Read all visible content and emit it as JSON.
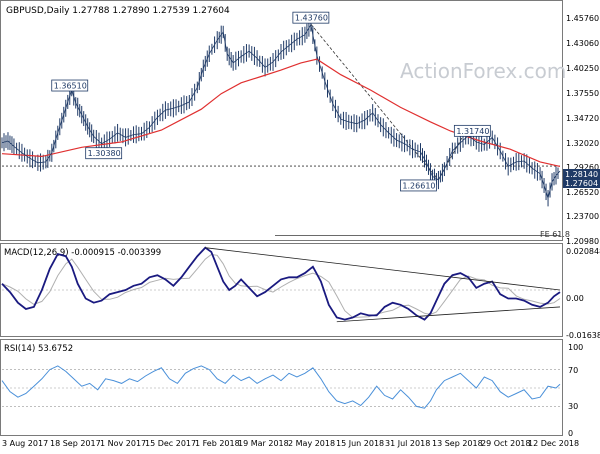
{
  "header": {
    "symbol_line": "GBPUSD,Daily  1.27788 1.27890 1.27539 1.27604",
    "watermark": "ActionForex.com"
  },
  "colors": {
    "price": "#1f3a66",
    "ma": "#e03030",
    "macd_line": "#1a1a80",
    "macd_signal": "#b0b0b0",
    "rsi": "#4a90d9",
    "label_text": "#1f3a66",
    "last_price_box": "#1f3a66"
  },
  "chart_data": [
    {
      "type": "line",
      "panel": "price",
      "title": "GBPUSD,Daily",
      "ohlc_last": {
        "open": 1.27788,
        "high": 1.2789,
        "low": 1.27539,
        "close": 1.27604
      },
      "y_ticks": [
        "1.45760",
        "1.43060",
        "1.40250",
        "1.37550",
        "1.34720",
        "1.32020",
        "1.29260",
        "1.26520",
        "1.23700",
        "1.20980"
      ],
      "ylim": [
        1.2,
        1.462
      ],
      "x_ticks": [
        "3 Aug 2017",
        "18 Sep 2017",
        "1 Nov 2017",
        "15 Dec 2017",
        "1 Feb 2018",
        "19 Mar 2018",
        "2 May 2018",
        "15 Jun 2018",
        "31 Jul 2018",
        "13 Sep 2018",
        "29 Oct 2018",
        "12 Dec 2018"
      ],
      "series": [
        {
          "kind": "price",
          "points": [
            [
              0,
              1.307
            ],
            [
              3,
              1.309
            ],
            [
              6,
              1.303
            ],
            [
              10,
              1.296
            ],
            [
              14,
              1.29
            ],
            [
              18,
              1.285
            ],
            [
              22,
              1.286
            ],
            [
              25,
              1.296
            ],
            [
              28,
              1.318
            ],
            [
              31,
              1.338
            ],
            [
              33,
              1.352
            ],
            [
              35,
              1.365
            ],
            [
              37,
              1.351
            ],
            [
              40,
              1.338
            ],
            [
              43,
              1.325
            ],
            [
              46,
              1.314
            ],
            [
              50,
              1.306
            ],
            [
              54,
              1.311
            ],
            [
              58,
              1.318
            ],
            [
              62,
              1.313
            ],
            [
              66,
              1.316
            ],
            [
              70,
              1.317
            ],
            [
              74,
              1.324
            ],
            [
              78,
              1.335
            ],
            [
              82,
              1.343
            ],
            [
              86,
              1.345
            ],
            [
              90,
              1.348
            ],
            [
              94,
              1.352
            ],
            [
              98,
              1.368
            ],
            [
              101,
              1.389
            ],
            [
              104,
              1.405
            ],
            [
              108,
              1.42
            ],
            [
              111,
              1.429
            ],
            [
              113,
              1.405
            ],
            [
              116,
              1.395
            ],
            [
              120,
              1.402
            ],
            [
              124,
              1.408
            ],
            [
              128,
              1.4
            ],
            [
              132,
              1.39
            ],
            [
              136,
              1.396
            ],
            [
              140,
              1.407
            ],
            [
              144,
              1.414
            ],
            [
              148,
              1.421
            ],
            [
              152,
              1.426
            ],
            [
              155,
              1.437
            ],
            [
              158,
              1.403
            ],
            [
              162,
              1.375
            ],
            [
              166,
              1.35
            ],
            [
              170,
              1.333
            ],
            [
              174,
              1.33
            ],
            [
              178,
              1.328
            ],
            [
              182,
              1.332
            ],
            [
              186,
              1.34
            ],
            [
              190,
              1.327
            ],
            [
              194,
              1.318
            ],
            [
              198,
              1.31
            ],
            [
              202,
              1.306
            ],
            [
              206,
              1.3
            ],
            [
              210,
              1.297
            ],
            [
              213,
              1.285
            ],
            [
              216,
              1.27
            ],
            [
              219,
              1.266
            ],
            [
              222,
              1.278
            ],
            [
              226,
              1.298
            ],
            [
              230,
              1.307
            ],
            [
              234,
              1.315
            ],
            [
              238,
              1.308
            ],
            [
              242,
              1.305
            ],
            [
              246,
              1.313
            ],
            [
              250,
              1.298
            ],
            [
              254,
              1.281
            ],
            [
              258,
              1.286
            ],
            [
              262,
              1.287
            ],
            [
              266,
              1.279
            ],
            [
              270,
              1.273
            ],
            [
              272,
              1.26
            ],
            [
              274,
              1.246
            ],
            [
              276,
              1.264
            ],
            [
              278,
              1.271
            ],
            [
              280,
              1.276
            ]
          ]
        },
        {
          "kind": "ma",
          "points": [
            [
              0,
              1.295
            ],
            [
              20,
              1.292
            ],
            [
              40,
              1.302
            ],
            [
              60,
              1.308
            ],
            [
              80,
              1.321
            ],
            [
              100,
              1.344
            ],
            [
              110,
              1.361
            ],
            [
              120,
              1.373
            ],
            [
              130,
              1.38
            ],
            [
              140,
              1.387
            ],
            [
              150,
              1.395
            ],
            [
              158,
              1.399
            ],
            [
              170,
              1.382
            ],
            [
              185,
              1.365
            ],
            [
              200,
              1.346
            ],
            [
              215,
              1.33
            ],
            [
              225,
              1.32
            ],
            [
              240,
              1.309
            ],
            [
              255,
              1.3
            ],
            [
              270,
              1.286
            ],
            [
              280,
              1.281
            ]
          ]
        }
      ],
      "annotations": [
        {
          "text": "1.43760",
          "x": 157,
          "y": 1.4376
        },
        {
          "text": "1.36510",
          "x": 37,
          "y": 1.3651
        },
        {
          "text": "1.30380",
          "x": 46,
          "y": 1.3038
        },
        {
          "text": "1.31740",
          "x": 230,
          "y": 1.3174
        },
        {
          "text": "1.26610",
          "x": 219,
          "y": 1.2661
        }
      ],
      "axis_labels": {
        "a": "1.28140",
        "b": "1.27604"
      },
      "fe_label": "FE 61.8"
    },
    {
      "type": "line",
      "panel": "macd",
      "title": "MACD(12,26,9) -0.000915 -0.003399",
      "y_ticks": [
        "0.020848",
        "0.00",
        "-0.016389"
      ],
      "ylim": [
        -0.0208,
        0.0208
      ],
      "series": [
        {
          "kind": "macd",
          "points": [
            [
              0,
              0.003
            ],
            [
              4,
              -0.001
            ],
            [
              8,
              -0.006
            ],
            [
              12,
              -0.009
            ],
            [
              16,
              -0.008
            ],
            [
              20,
              0.0
            ],
            [
              24,
              0.01
            ],
            [
              28,
              0.017
            ],
            [
              32,
              0.016
            ],
            [
              35,
              0.011
            ],
            [
              38,
              0.003
            ],
            [
              42,
              -0.004
            ],
            [
              46,
              -0.006
            ],
            [
              50,
              -0.005
            ],
            [
              54,
              -0.002
            ],
            [
              58,
              -0.001
            ],
            [
              62,
              0.0
            ],
            [
              66,
              0.002
            ],
            [
              70,
              0.003
            ],
            [
              74,
              0.006
            ],
            [
              78,
              0.007
            ],
            [
              82,
              0.005
            ],
            [
              86,
              0.002
            ],
            [
              90,
              0.006
            ],
            [
              94,
              0.011
            ],
            [
              98,
              0.016
            ],
            [
              102,
              0.02
            ],
            [
              105,
              0.018
            ],
            [
              108,
              0.011
            ],
            [
              111,
              0.004
            ],
            [
              114,
              0.0
            ],
            [
              117,
              0.002
            ],
            [
              120,
              0.005
            ],
            [
              124,
              0.001
            ],
            [
              128,
              -0.003
            ],
            [
              132,
              -0.001
            ],
            [
              136,
              0.002
            ],
            [
              140,
              0.005
            ],
            [
              144,
              0.006
            ],
            [
              148,
              0.006
            ],
            [
              152,
              0.008
            ],
            [
              156,
              0.011
            ],
            [
              160,
              0.004
            ],
            [
              164,
              -0.007
            ],
            [
              168,
              -0.013
            ],
            [
              172,
              -0.014
            ],
            [
              176,
              -0.013
            ],
            [
              180,
              -0.011
            ],
            [
              184,
              -0.012
            ],
            [
              188,
              -0.012
            ],
            [
              192,
              -0.008
            ],
            [
              196,
              -0.006
            ],
            [
              200,
              -0.007
            ],
            [
              204,
              -0.009
            ],
            [
              208,
              -0.012
            ],
            [
              212,
              -0.014
            ],
            [
              215,
              -0.011
            ],
            [
              218,
              -0.005
            ],
            [
              222,
              0.003
            ],
            [
              226,
              0.007
            ],
            [
              230,
              0.008
            ],
            [
              234,
              0.006
            ],
            [
              238,
              0.001
            ],
            [
              242,
              0.003
            ],
            [
              246,
              0.004
            ],
            [
              250,
              -0.002
            ],
            [
              254,
              -0.004
            ],
            [
              258,
              -0.004
            ],
            [
              262,
              -0.005
            ],
            [
              266,
              -0.007
            ],
            [
              270,
              -0.008
            ],
            [
              274,
              -0.006
            ],
            [
              277,
              -0.003
            ],
            [
              280,
              -0.001
            ]
          ]
        }
      ],
      "trendlines": [
        [
          [
            102,
            0.02
          ],
          [
            280,
            0.0
          ]
        ],
        [
          [
            168,
            -0.015
          ],
          [
            280,
            -0.008
          ]
        ]
      ]
    },
    {
      "type": "line",
      "panel": "rsi",
      "title": "RSI(14) 53.6752",
      "y_ticks": [
        "100",
        "70",
        "50",
        "30",
        "0"
      ],
      "ylim": [
        0,
        100
      ],
      "series": [
        {
          "kind": "rsi",
          "points": [
            [
              0,
              58
            ],
            [
              4,
              46
            ],
            [
              8,
              40
            ],
            [
              12,
              44
            ],
            [
              16,
              52
            ],
            [
              20,
              60
            ],
            [
              24,
              70
            ],
            [
              28,
              74
            ],
            [
              32,
              68
            ],
            [
              36,
              60
            ],
            [
              40,
              52
            ],
            [
              44,
              55
            ],
            [
              48,
              48
            ],
            [
              52,
              60
            ],
            [
              56,
              58
            ],
            [
              60,
              55
            ],
            [
              64,
              60
            ],
            [
              68,
              57
            ],
            [
              72,
              63
            ],
            [
              76,
              68
            ],
            [
              80,
              72
            ],
            [
              84,
              60
            ],
            [
              88,
              55
            ],
            [
              92,
              66
            ],
            [
              96,
              71
            ],
            [
              100,
              74
            ],
            [
              104,
              70
            ],
            [
              108,
              60
            ],
            [
              112,
              55
            ],
            [
              116,
              64
            ],
            [
              120,
              58
            ],
            [
              124,
              62
            ],
            [
              128,
              55
            ],
            [
              132,
              60
            ],
            [
              136,
              64
            ],
            [
              140,
              58
            ],
            [
              144,
              66
            ],
            [
              148,
              62
            ],
            [
              152,
              66
            ],
            [
              156,
              72
            ],
            [
              160,
              60
            ],
            [
              164,
              46
            ],
            [
              168,
              36
            ],
            [
              172,
              33
            ],
            [
              176,
              36
            ],
            [
              180,
              31
            ],
            [
              184,
              40
            ],
            [
              188,
              52
            ],
            [
              192,
              42
            ],
            [
              196,
              38
            ],
            [
              200,
              48
            ],
            [
              204,
              40
            ],
            [
              208,
              30
            ],
            [
              212,
              28
            ],
            [
              215,
              36
            ],
            [
              218,
              48
            ],
            [
              222,
              58
            ],
            [
              226,
              62
            ],
            [
              230,
              66
            ],
            [
              234,
              58
            ],
            [
              238,
              50
            ],
            [
              242,
              62
            ],
            [
              246,
              58
            ],
            [
              250,
              46
            ],
            [
              254,
              40
            ],
            [
              258,
              44
            ],
            [
              262,
              48
            ],
            [
              266,
              38
            ],
            [
              270,
              40
            ],
            [
              274,
              52
            ],
            [
              278,
              50
            ],
            [
              280,
              54
            ]
          ]
        }
      ]
    }
  ]
}
